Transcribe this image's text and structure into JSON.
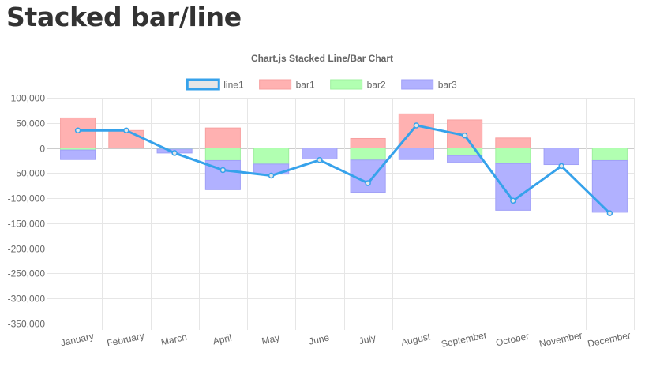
{
  "page": {
    "heading": "Stacked bar/line"
  },
  "chart_data": {
    "type": "bar",
    "title": "Chart.js Stacked Line/Bar Chart",
    "xlabel": "",
    "ylabel": "",
    "categories": [
      "January",
      "February",
      "March",
      "April",
      "May",
      "June",
      "July",
      "August",
      "September",
      "October",
      "November",
      "December"
    ],
    "ylim": [
      -350000,
      100000
    ],
    "ytick_step": 50000,
    "grid": true,
    "legend": "top",
    "series": [
      {
        "name": "line1",
        "type": "line",
        "values": [
          35000,
          35000,
          -10000,
          -44000,
          -55000,
          -24000,
          -70000,
          45000,
          25000,
          -105000,
          -36000,
          -130000
        ],
        "color": "#36a2eb",
        "fill": "#e6e6e6"
      },
      {
        "name": "bar1",
        "type": "bar",
        "values": [
          60000,
          35000,
          0,
          40000,
          0,
          0,
          19000,
          68000,
          56000,
          20000,
          0,
          0
        ],
        "color": "#ffb1b1",
        "border": "#f7a0a0"
      },
      {
        "name": "bar2",
        "type": "bar",
        "values": [
          -4000,
          0,
          -2000,
          -25000,
          -32000,
          0,
          -24000,
          0,
          -15000,
          -31000,
          0,
          -25000
        ],
        "color": "#b1ffb1",
        "border": "#9ff09f"
      },
      {
        "name": "bar3",
        "type": "bar",
        "values": [
          -19000,
          0,
          -8000,
          -58000,
          -20000,
          -22000,
          -64000,
          -23000,
          -14000,
          -93000,
          -33000,
          -103000
        ],
        "color": "#b1b1ff",
        "border": "#a0a0f7"
      }
    ]
  }
}
